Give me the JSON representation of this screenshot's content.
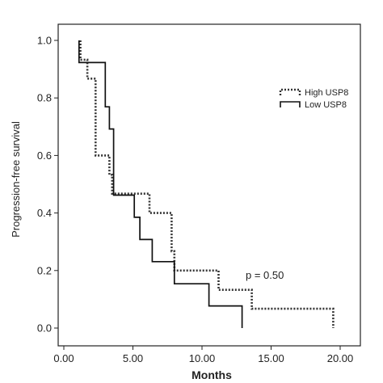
{
  "chart_data": {
    "type": "line",
    "subtype": "kaplan-meier-step",
    "xlabel": "Months",
    "ylabel": "Progression-free survival",
    "xlim": [
      0,
      20.5
    ],
    "ylim": [
      0,
      1.05
    ],
    "x_ticks": [
      {
        "value": 0,
        "label": "0.00"
      },
      {
        "value": 5,
        "label": "5.00"
      },
      {
        "value": 10,
        "label": "10.00"
      },
      {
        "value": 15,
        "label": "15.00"
      },
      {
        "value": 20,
        "label": "20.00"
      }
    ],
    "y_ticks": [
      {
        "value": 0,
        "label": "0.0"
      },
      {
        "value": 0.2,
        "label": "0.2"
      },
      {
        "value": 0.4,
        "label": "0.4"
      },
      {
        "value": 0.6,
        "label": "0.6"
      },
      {
        "value": 0.8,
        "label": "0.8"
      },
      {
        "value": 1.0,
        "label": "1.0"
      }
    ],
    "grid": false,
    "legend_position": "top-right",
    "annotation": "p = 0.50",
    "series": [
      {
        "name": "High USP8",
        "style": "dotted",
        "color": "#333333",
        "points": [
          [
            1.2,
            1.0
          ],
          [
            1.2,
            0.933
          ],
          [
            1.7,
            0.933
          ],
          [
            1.7,
            0.867
          ],
          [
            2.3,
            0.867
          ],
          [
            2.3,
            0.6
          ],
          [
            3.3,
            0.6
          ],
          [
            3.3,
            0.533
          ],
          [
            3.5,
            0.533
          ],
          [
            3.5,
            0.467
          ],
          [
            6.2,
            0.467
          ],
          [
            6.2,
            0.4
          ],
          [
            7.8,
            0.4
          ],
          [
            7.8,
            0.267
          ],
          [
            8.0,
            0.267
          ],
          [
            8.0,
            0.2
          ],
          [
            11.2,
            0.2
          ],
          [
            11.2,
            0.133
          ],
          [
            13.6,
            0.133
          ],
          [
            13.6,
            0.067
          ],
          [
            19.5,
            0.067
          ],
          [
            19.5,
            0.0
          ]
        ]
      },
      {
        "name": "Low USP8",
        "style": "solid",
        "color": "#111111",
        "points": [
          [
            1.1,
            1.0
          ],
          [
            1.1,
            0.923
          ],
          [
            3.0,
            0.923
          ],
          [
            3.0,
            0.769
          ],
          [
            3.3,
            0.769
          ],
          [
            3.3,
            0.692
          ],
          [
            3.6,
            0.692
          ],
          [
            3.6,
            0.462
          ],
          [
            5.1,
            0.462
          ],
          [
            5.1,
            0.385
          ],
          [
            5.5,
            0.385
          ],
          [
            5.5,
            0.308
          ],
          [
            6.4,
            0.308
          ],
          [
            6.4,
            0.231
          ],
          [
            8.0,
            0.231
          ],
          [
            8.0,
            0.154
          ],
          [
            10.5,
            0.154
          ],
          [
            10.5,
            0.077
          ],
          [
            12.9,
            0.077
          ],
          [
            12.9,
            0.0
          ]
        ]
      }
    ]
  }
}
